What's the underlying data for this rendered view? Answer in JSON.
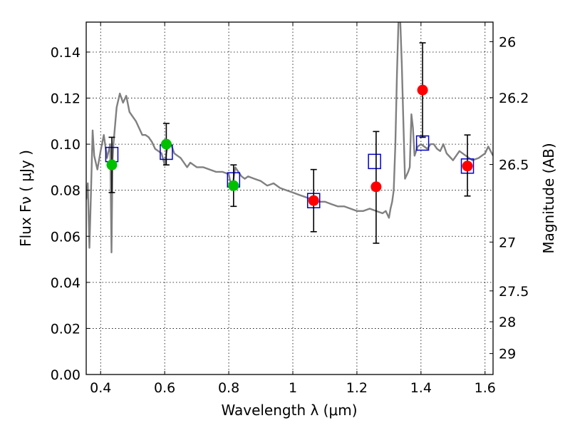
{
  "chart_data": {
    "type": "scatter",
    "xlabel": "Wavelength  λ (μm)",
    "ylabel": "Flux  Fν  ( μJy )",
    "ylabel_right": "Magnitude (AB)",
    "xlim": [
      0.355,
      1.625
    ],
    "ylim": [
      0.0,
      0.153
    ],
    "x_ticks": [
      {
        "value": 0.4,
        "label": "0.4"
      },
      {
        "value": 0.6,
        "label": "0.6"
      },
      {
        "value": 0.8,
        "label": "0.8"
      },
      {
        "value": 1.0,
        "label": "1"
      },
      {
        "value": 1.2,
        "label": "1.2"
      },
      {
        "value": 1.4,
        "label": "1.4"
      },
      {
        "value": 1.6,
        "label": "1.6"
      }
    ],
    "y_ticks": [
      {
        "value": 0.0,
        "label": "0.00"
      },
      {
        "value": 0.02,
        "label": "0.02"
      },
      {
        "value": 0.04,
        "label": "0.04"
      },
      {
        "value": 0.06,
        "label": "0.06"
      },
      {
        "value": 0.08,
        "label": "0.08"
      },
      {
        "value": 0.1,
        "label": "0.10"
      },
      {
        "value": 0.12,
        "label": "0.12"
      },
      {
        "value": 0.14,
        "label": "0.14"
      }
    ],
    "right_ticks": [
      {
        "flux": 0.1445,
        "label": "26"
      },
      {
        "flux": 0.1202,
        "label": "26.2"
      },
      {
        "flux": 0.0912,
        "label": "26.5"
      },
      {
        "flux": 0.0575,
        "label": "27"
      },
      {
        "flux": 0.0363,
        "label": "27.5"
      },
      {
        "flux": 0.0229,
        "label": "28"
      },
      {
        "flux": 0.0091,
        "label": "29"
      }
    ],
    "grid": true,
    "colors": {
      "template": "#808080",
      "model_box": "#0000cc",
      "obs_optical": "#00c000",
      "obs_nir": "#ff0000",
      "errorbar": "#000000"
    },
    "template_spectrum": {
      "x": [
        0.355,
        0.36,
        0.365,
        0.37,
        0.375,
        0.38,
        0.39,
        0.4,
        0.41,
        0.42,
        0.43,
        0.434,
        0.437,
        0.44,
        0.45,
        0.46,
        0.47,
        0.48,
        0.49,
        0.5,
        0.51,
        0.52,
        0.53,
        0.54,
        0.55,
        0.56,
        0.57,
        0.58,
        0.59,
        0.6,
        0.605,
        0.61,
        0.62,
        0.63,
        0.64,
        0.65,
        0.66,
        0.67,
        0.68,
        0.69,
        0.7,
        0.72,
        0.74,
        0.76,
        0.78,
        0.8,
        0.81,
        0.82,
        0.83,
        0.84,
        0.85,
        0.86,
        0.88,
        0.9,
        0.92,
        0.94,
        0.96,
        0.98,
        1.0,
        1.02,
        1.04,
        1.06,
        1.08,
        1.1,
        1.12,
        1.14,
        1.16,
        1.18,
        1.2,
        1.22,
        1.24,
        1.26,
        1.28,
        1.29,
        1.3,
        1.305,
        1.31,
        1.315,
        1.32,
        1.325,
        1.33,
        1.335,
        1.34,
        1.345,
        1.35,
        1.36,
        1.365,
        1.37,
        1.375,
        1.38,
        1.39,
        1.4,
        1.41,
        1.42,
        1.43,
        1.44,
        1.45,
        1.46,
        1.47,
        1.48,
        1.5,
        1.52,
        1.54,
        1.56,
        1.58,
        1.6,
        1.61,
        1.625
      ],
      "y": [
        0.076,
        0.083,
        0.055,
        0.079,
        0.106,
        0.095,
        0.089,
        0.097,
        0.104,
        0.094,
        0.1,
        0.053,
        0.092,
        0.1,
        0.116,
        0.122,
        0.118,
        0.121,
        0.114,
        0.112,
        0.11,
        0.107,
        0.104,
        0.104,
        0.103,
        0.101,
        0.098,
        0.097,
        0.096,
        0.091,
        0.096,
        0.099,
        0.1,
        0.096,
        0.095,
        0.094,
        0.092,
        0.09,
        0.092,
        0.091,
        0.09,
        0.09,
        0.089,
        0.088,
        0.088,
        0.087,
        0.08,
        0.09,
        0.088,
        0.086,
        0.085,
        0.086,
        0.085,
        0.084,
        0.082,
        0.083,
        0.081,
        0.08,
        0.079,
        0.078,
        0.077,
        0.076,
        0.075,
        0.075,
        0.074,
        0.073,
        0.073,
        0.072,
        0.071,
        0.071,
        0.072,
        0.071,
        0.07,
        0.071,
        0.068,
        0.072,
        0.075,
        0.08,
        0.1,
        0.13,
        0.155,
        0.155,
        0.135,
        0.11,
        0.085,
        0.088,
        0.09,
        0.113,
        0.107,
        0.095,
        0.099,
        0.1,
        0.099,
        0.098,
        0.1,
        0.1,
        0.098,
        0.097,
        0.1,
        0.096,
        0.093,
        0.097,
        0.095,
        0.093,
        0.094,
        0.096,
        0.099,
        0.095
      ]
    },
    "model_points": [
      {
        "x": 0.435,
        "y": 0.0955
      },
      {
        "x": 0.605,
        "y": 0.0965
      },
      {
        "x": 0.815,
        "y": 0.0845
      },
      {
        "x": 1.065,
        "y": 0.0755
      },
      {
        "x": 1.255,
        "y": 0.0925
      },
      {
        "x": 1.405,
        "y": 0.1005
      },
      {
        "x": 1.545,
        "y": 0.0905
      }
    ],
    "observed_points": [
      {
        "x": 0.435,
        "y": 0.091,
        "yerr_low": 0.079,
        "yerr_high": 0.103,
        "color": "#00c000"
      },
      {
        "x": 0.605,
        "y": 0.1,
        "yerr_low": 0.091,
        "yerr_high": 0.109,
        "color": "#00c000"
      },
      {
        "x": 0.815,
        "y": 0.082,
        "yerr_low": 0.073,
        "yerr_high": 0.091,
        "color": "#00c000"
      },
      {
        "x": 1.065,
        "y": 0.0755,
        "yerr_low": 0.062,
        "yerr_high": 0.089,
        "color": "#ff0000"
      },
      {
        "x": 1.26,
        "y": 0.0815,
        "yerr_low": 0.057,
        "yerr_high": 0.1055,
        "color": "#ff0000"
      },
      {
        "x": 1.405,
        "y": 0.1235,
        "yerr_low": 0.103,
        "yerr_high": 0.144,
        "color": "#ff0000"
      },
      {
        "x": 1.545,
        "y": 0.0905,
        "yerr_low": 0.0775,
        "yerr_high": 0.104,
        "color": "#ff0000"
      }
    ]
  }
}
